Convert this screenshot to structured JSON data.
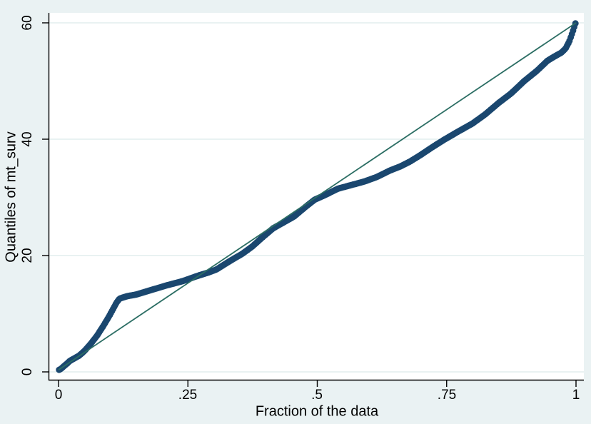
{
  "colors": {
    "background": "#eaf2f3",
    "plot_background": "#ffffff",
    "grid": "#e2edee",
    "axis": "#000000",
    "marker": "#1a476f",
    "reference_line": "#2c6e64",
    "text": "#000000"
  },
  "chart_data": {
    "type": "scatter",
    "title": "",
    "xlabel": "Fraction of the data",
    "ylabel": "Quantiles of mt_surv",
    "xlim": [
      0,
      1
    ],
    "ylim": [
      0,
      60
    ],
    "x_ticks": [
      0,
      0.25,
      0.5,
      0.75,
      1
    ],
    "x_tick_labels": [
      "0",
      ".25",
      ".5",
      ".75",
      "1"
    ],
    "y_ticks": [
      0,
      20,
      40,
      60
    ],
    "y_tick_labels": [
      "0",
      "20",
      "40",
      "60"
    ],
    "grid": "horizontal",
    "legend_position": "none",
    "n_markers_rendered": 440,
    "series": [
      {
        "name": "quantiles-of-mt_surv",
        "kind": "markers",
        "marker": "circle",
        "color": "#1a476f",
        "points": [
          [
            0.0,
            0.3
          ],
          [
            0.005,
            0.55
          ],
          [
            0.01,
            0.95
          ],
          [
            0.016,
            1.4
          ],
          [
            0.022,
            1.9
          ],
          [
            0.03,
            2.3
          ],
          [
            0.04,
            2.8
          ],
          [
            0.05,
            3.6
          ],
          [
            0.062,
            4.8
          ],
          [
            0.075,
            6.3
          ],
          [
            0.088,
            8.1
          ],
          [
            0.098,
            9.6
          ],
          [
            0.106,
            10.9
          ],
          [
            0.112,
            11.9
          ],
          [
            0.118,
            12.6
          ],
          [
            0.132,
            13.0
          ],
          [
            0.15,
            13.3
          ],
          [
            0.18,
            14.1
          ],
          [
            0.21,
            14.9
          ],
          [
            0.24,
            15.6
          ],
          [
            0.265,
            16.4
          ],
          [
            0.29,
            17.1
          ],
          [
            0.305,
            17.6
          ],
          [
            0.33,
            19.0
          ],
          [
            0.355,
            20.3
          ],
          [
            0.375,
            21.6
          ],
          [
            0.395,
            23.2
          ],
          [
            0.415,
            24.7
          ],
          [
            0.435,
            25.7
          ],
          [
            0.455,
            26.7
          ],
          [
            0.475,
            28.2
          ],
          [
            0.495,
            29.6
          ],
          [
            0.515,
            30.4
          ],
          [
            0.54,
            31.5
          ],
          [
            0.565,
            32.1
          ],
          [
            0.59,
            32.7
          ],
          [
            0.615,
            33.5
          ],
          [
            0.64,
            34.6
          ],
          [
            0.66,
            35.3
          ],
          [
            0.68,
            36.2
          ],
          [
            0.7,
            37.3
          ],
          [
            0.72,
            38.5
          ],
          [
            0.745,
            39.9
          ],
          [
            0.77,
            41.2
          ],
          [
            0.8,
            42.7
          ],
          [
            0.825,
            44.3
          ],
          [
            0.85,
            46.2
          ],
          [
            0.875,
            47.9
          ],
          [
            0.9,
            50.0
          ],
          [
            0.925,
            51.8
          ],
          [
            0.945,
            53.5
          ],
          [
            0.96,
            54.3
          ],
          [
            0.972,
            54.9
          ],
          [
            0.98,
            55.6
          ],
          [
            0.987,
            56.8
          ],
          [
            0.993,
            58.3
          ],
          [
            0.997,
            59.4
          ],
          [
            1.0,
            60.2
          ]
        ]
      },
      {
        "name": "reference-line",
        "kind": "line",
        "color": "#2c6e64",
        "points": [
          [
            0,
            0.35
          ],
          [
            1,
            60.0
          ]
        ]
      }
    ]
  }
}
